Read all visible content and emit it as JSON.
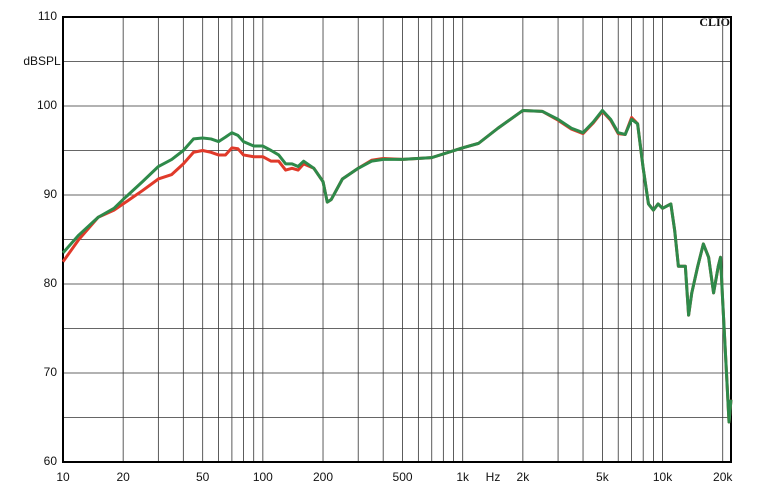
{
  "chart_data": {
    "type": "line",
    "title": "CLIO",
    "y_label": "dBSPL",
    "x_label": "Hz",
    "log_x": true,
    "grid": true,
    "xlim": [
      10,
      22000
    ],
    "ylim": [
      60,
      110
    ],
    "xticks": [
      10,
      20,
      50,
      100,
      200,
      500,
      {
        "value": 1000,
        "label": "1k"
      },
      {
        "value": 2000,
        "label": "2k"
      },
      {
        "value": 5000,
        "label": "5k"
      },
      {
        "value": 10000,
        "label": "10k"
      },
      {
        "value": 20000,
        "label": "20k"
      }
    ],
    "xgrid": [
      30,
      40,
      60,
      70,
      80,
      90,
      300,
      400,
      600,
      700,
      800,
      900,
      3000,
      4000,
      6000,
      7000,
      8000,
      9000
    ],
    "yticks": [
      60,
      70,
      80,
      90,
      100,
      110
    ],
    "ygrid": [
      65,
      75,
      85,
      95,
      105
    ],
    "x": [
      10,
      12,
      15,
      18,
      20,
      25,
      30,
      35,
      40,
      45,
      50,
      55,
      60,
      65,
      70,
      75,
      80,
      90,
      100,
      110,
      120,
      130,
      140,
      150,
      160,
      180,
      200,
      210,
      220,
      250,
      300,
      350,
      400,
      500,
      700,
      1000,
      1200,
      1500,
      2000,
      2500,
      3000,
      3500,
      4000,
      4500,
      5000,
      5500,
      6000,
      6500,
      7000,
      7500,
      8000,
      8500,
      9000,
      9500,
      10000,
      11000,
      11500,
      12000,
      13000,
      13500,
      14000,
      15000,
      16000,
      17000,
      18000,
      19000,
      19500,
      20000,
      21000,
      21500,
      22000
    ],
    "series": [
      {
        "name": "red",
        "color": "#e03a2a",
        "values": [
          82.5,
          85,
          87.5,
          88.3,
          89,
          90.5,
          91.8,
          92.3,
          93.5,
          94.8,
          95,
          94.8,
          94.5,
          94.5,
          95.3,
          95.2,
          94.5,
          94.3,
          94.3,
          93.8,
          93.8,
          92.8,
          93,
          92.8,
          93.5,
          93,
          91.5,
          89.2,
          89.5,
          91.8,
          93,
          93.9,
          94.1,
          94,
          94.2,
          95.3,
          95.8,
          97.5,
          99.5,
          99.4,
          98.4,
          97.4,
          96.9,
          98.1,
          99.4,
          98.4,
          96.9,
          96.8,
          98.7,
          98,
          93,
          89,
          88.3,
          89,
          88.5,
          89,
          86,
          82,
          82,
          76.5,
          79,
          82,
          84.5,
          83,
          79,
          82,
          83,
          78,
          69,
          64.5,
          67
        ]
      },
      {
        "name": "green",
        "color": "#2e8a4a",
        "values": [
          83.5,
          85.5,
          87.5,
          88.5,
          89.5,
          91.5,
          93.2,
          94,
          95,
          96.3,
          96.4,
          96.3,
          96,
          96.5,
          97,
          96.7,
          96,
          95.5,
          95.5,
          95,
          94.5,
          93.5,
          93.5,
          93.2,
          93.8,
          93,
          91.5,
          89.2,
          89.5,
          91.8,
          93,
          93.8,
          94,
          94,
          94.2,
          95.3,
          95.8,
          97.5,
          99.5,
          99.4,
          98.5,
          97.5,
          97,
          98.2,
          99.5,
          98.5,
          97,
          96.8,
          98.5,
          98,
          93,
          89,
          88.3,
          89,
          88.5,
          89,
          86,
          82,
          82,
          76.5,
          79,
          82,
          84.5,
          83,
          79,
          82,
          83,
          78,
          69,
          64.5,
          67
        ]
      }
    ]
  }
}
